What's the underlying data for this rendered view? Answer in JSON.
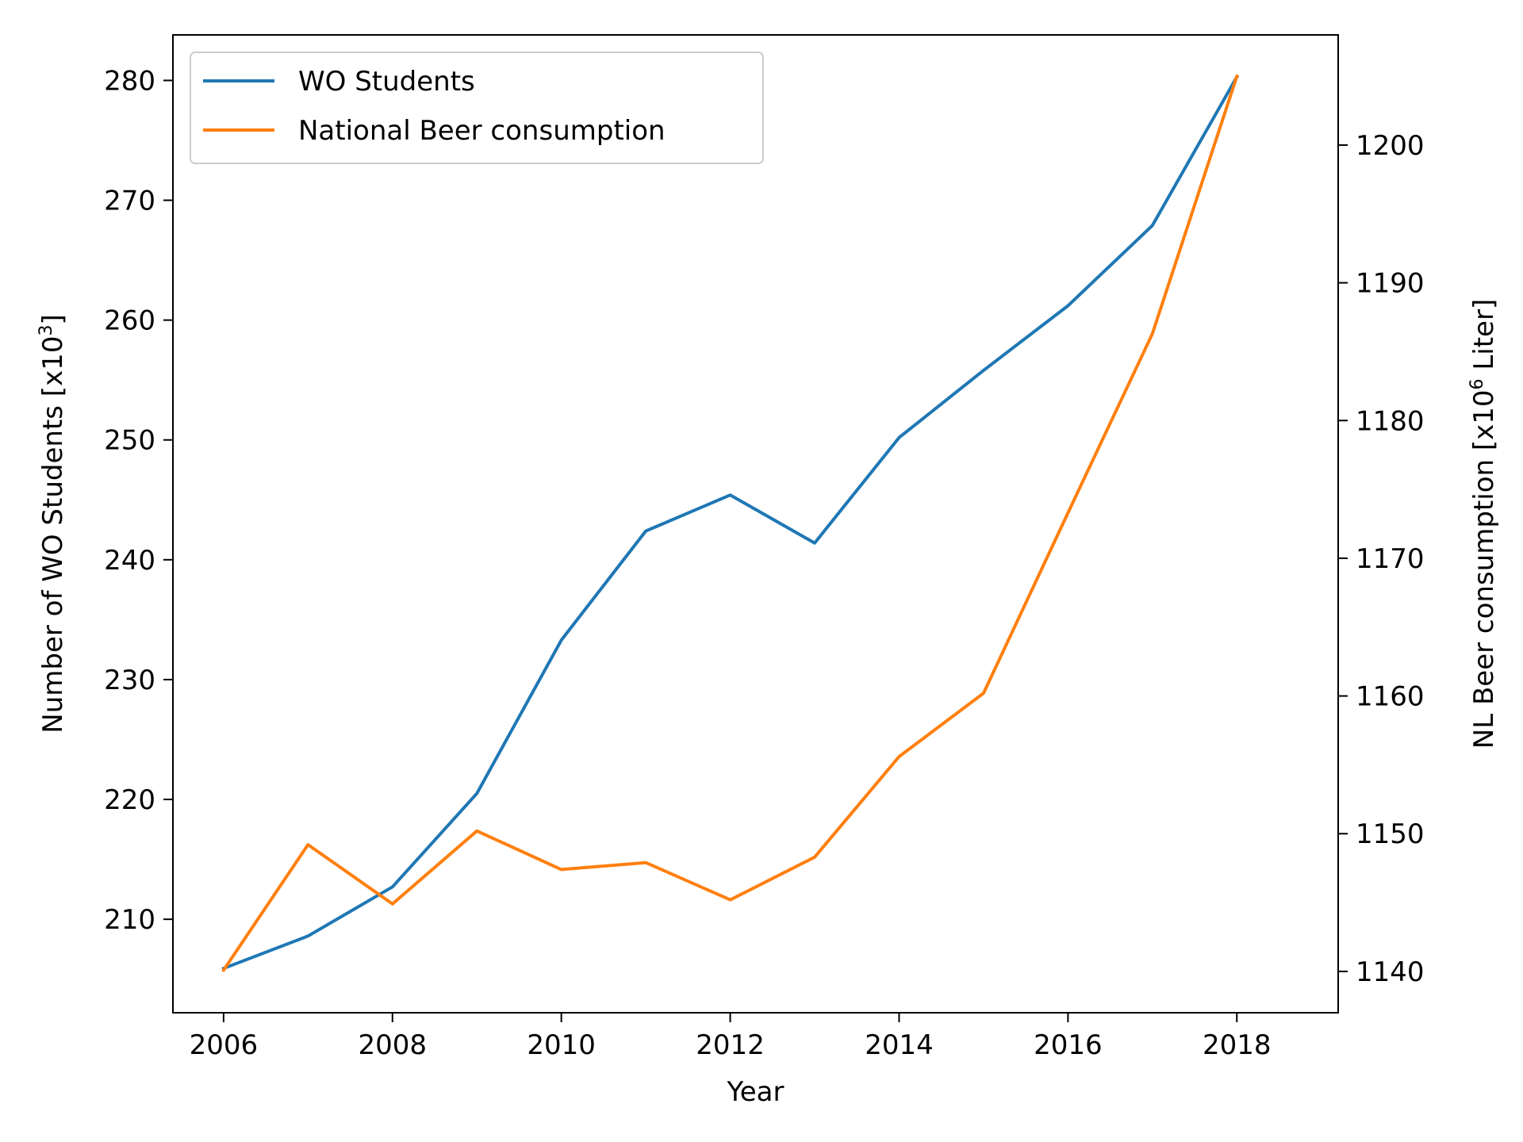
{
  "chart_data": {
    "type": "line",
    "x": [
      2006,
      2007,
      2008,
      2009,
      2010,
      2011,
      2012,
      2013,
      2014,
      2015,
      2016,
      2017,
      2018
    ],
    "xlabel": "Year",
    "xlim": [
      2005.4,
      2019.2
    ],
    "xticks": [
      2006,
      2008,
      2010,
      2012,
      2014,
      2016,
      2018
    ],
    "y_left": {
      "label_main": "Number of WO Students [x10",
      "label_sup": "3",
      "label_end": "]",
      "ylim": [
        202.2,
        283.8
      ],
      "ticks": [
        210,
        220,
        230,
        240,
        250,
        260,
        270,
        280
      ]
    },
    "y_right": {
      "label_main": "NL Beer consumption [x10",
      "label_sup": "6",
      "label_end": " Liter]",
      "ylim": [
        1137.0,
        1208.0
      ],
      "ticks": [
        1140,
        1150,
        1160,
        1170,
        1180,
        1190,
        1200
      ]
    },
    "series": [
      {
        "name": "WO Students",
        "axis": "left",
        "color": "#1f77b4",
        "values": [
          205.9,
          208.6,
          212.7,
          220.5,
          233.3,
          242.4,
          245.4,
          241.4,
          250.2,
          255.8,
          261.2,
          267.9,
          280.3
        ]
      },
      {
        "name": "National Beer consumption",
        "axis": "right",
        "color": "#ff7f0e",
        "values": [
          1140.1,
          1149.2,
          1144.9,
          1150.2,
          1147.4,
          1147.9,
          1145.2,
          1148.3,
          1155.6,
          1160.2,
          1173.3,
          1186.3,
          1205.0
        ]
      }
    ],
    "legend_position": "top-left",
    "grid": false
  }
}
